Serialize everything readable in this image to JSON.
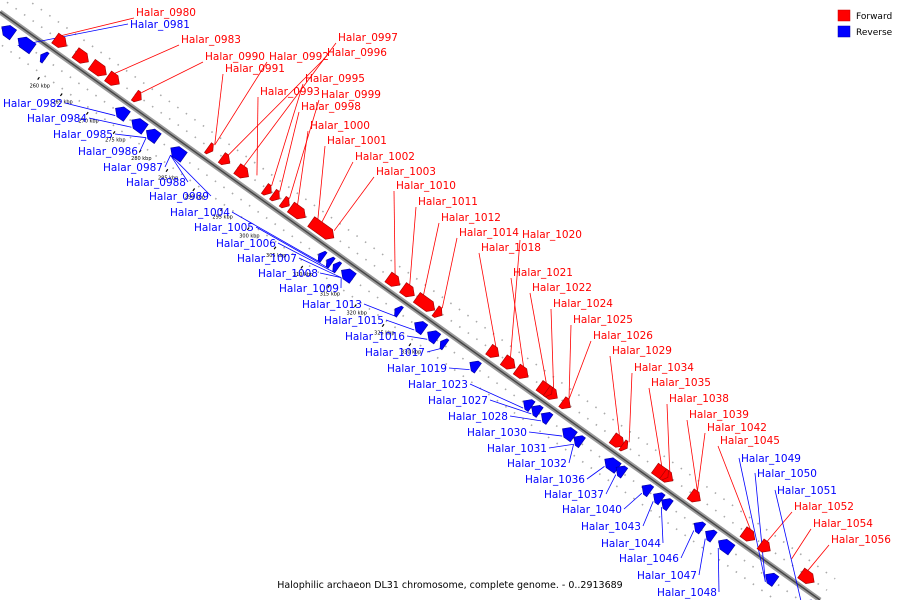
{
  "caption": "Halophilic archaeon DL31 chromosome, complete genome. - 0..2913689",
  "legend": [
    {
      "label": "Forward",
      "color": "#ff0000"
    },
    {
      "label": "Reverse",
      "color": "#0000ff"
    }
  ],
  "ticks": [
    "260 kbp",
    "265 kbp",
    "270 kbp",
    "275 kbp",
    "280 kbp",
    "285 kbp",
    "290 kbp",
    "295 kbp",
    "300 kbp",
    "305 kbp",
    "310 kbp",
    "315 kbp",
    "320 kbp",
    "325 kbp",
    "330 kbp"
  ],
  "forward_labels": [
    "Halar_0980",
    "Halar_0983",
    "Halar_0990",
    "Halar_0992",
    "Halar_0991",
    "Halar_0997",
    "Halar_0996",
    "Halar_0995",
    "Halar_0993",
    "Halar_0999",
    "Halar_0998",
    "Halar_1000",
    "Halar_1001",
    "Halar_1002",
    "Halar_1003",
    "Halar_1010",
    "Halar_1011",
    "Halar_1012",
    "Halar_1014",
    "Halar_1020",
    "Halar_1018",
    "Halar_1021",
    "Halar_1022",
    "Halar_1024",
    "Halar_1025",
    "Halar_1026",
    "Halar_1029",
    "Halar_1034",
    "Halar_1035",
    "Halar_1038",
    "Halar_1039",
    "Halar_1042",
    "Halar_1045",
    "Halar_1052",
    "Halar_1054",
    "Halar_1056"
  ],
  "reverse_labels": [
    "Halar_0981",
    "Halar_0982",
    "Halar_0984",
    "Halar_0985",
    "Halar_0986",
    "Halar_0987",
    "Halar_0988",
    "Halar_0989",
    "Halar_1004",
    "Halar_1005",
    "Halar_1006",
    "Halar_1007",
    "Halar_1008",
    "Halar_1009",
    "Halar_1013",
    "Halar_1015",
    "Halar_1016",
    "Halar_1017",
    "Halar_1019",
    "Halar_1023",
    "Halar_1027",
    "Halar_1028",
    "Halar_1030",
    "Halar_1031",
    "Halar_1032",
    "Halar_1036",
    "Halar_1037",
    "Halar_1040",
    "Halar_1043",
    "Halar_1044",
    "Halar_1046",
    "Halar_1047",
    "Halar_1048",
    "Halar_1049",
    "Halar_1050",
    "Halar_1051"
  ]
}
